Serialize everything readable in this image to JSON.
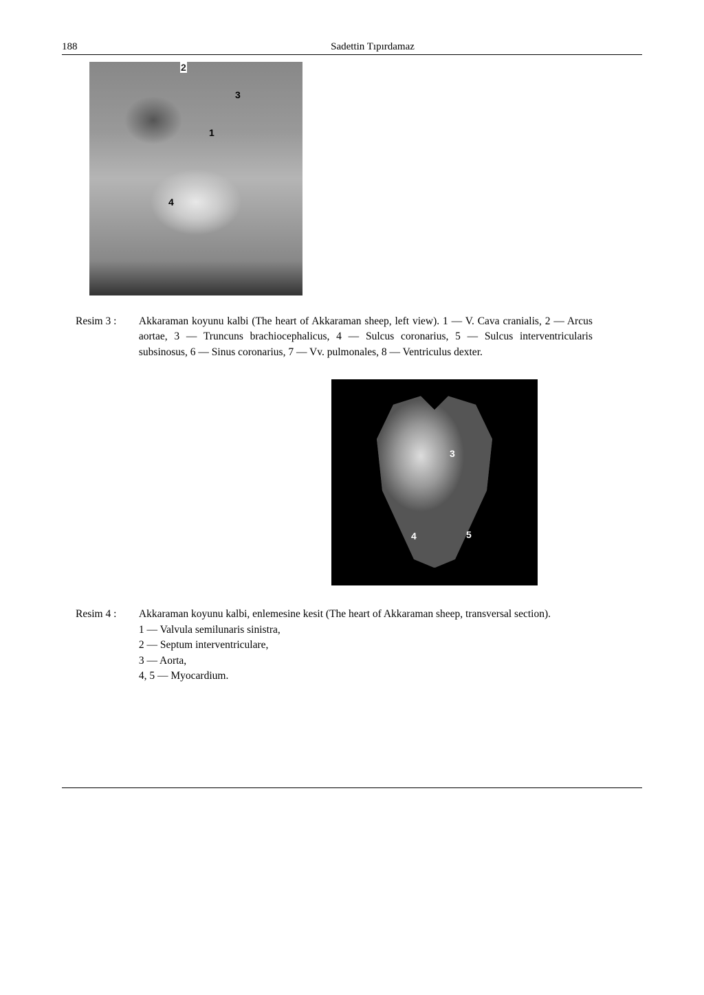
{
  "header": {
    "page_number": "188",
    "author": "Sadettin Tıpırdamaz"
  },
  "figure3": {
    "labels": {
      "l1": "1",
      "l2": "2",
      "l3": "3",
      "l4": "4"
    },
    "caption_label": "Resim 3 :",
    "caption_text": "Akkaraman koyunu kalbi (The heart of Akkaraman sheep, left view). 1 — V. Cava cranialis, 2 — Arcus aortae, 3 — Truncuns brachiocephalicus, 4 — Sulcus coronarius, 5 — Sulcus interventricularis subsinosus, 6 — Sinus coronarius, 7 — Vv. pulmonales, 8 — Ventriculus dexter."
  },
  "figure4": {
    "labels": {
      "l3": "3",
      "l4": "4",
      "l5": "5"
    },
    "caption_label": "Resim 4 :",
    "caption_line1": "Akkaraman koyunu kalbi, enlemesine kesit (The heart of Akkaraman sheep, transversal section).",
    "caption_line2": "1 — Valvula semilunaris sinistra,",
    "caption_line3": "2 — Septum interventriculare,",
    "caption_line4": "3 — Aorta,",
    "caption_line5": "4, 5 — Myocardium."
  }
}
